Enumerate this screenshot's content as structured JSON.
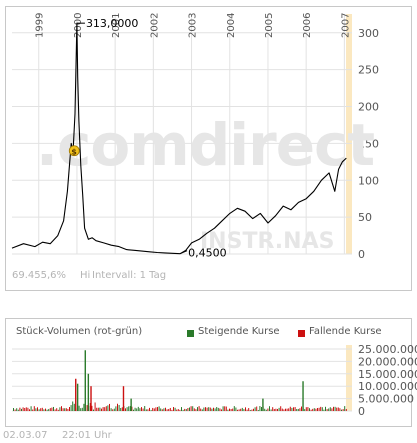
{
  "chart_data": [
    {
      "type": "line",
      "x_tick_labels": [
        "1999",
        "2000",
        "2001",
        "2002",
        "2003",
        "2004",
        "2005",
        "2006",
        "2007"
      ],
      "y_ticks": [
        0,
        50,
        100,
        150,
        200,
        250,
        300
      ],
      "ylim": [
        0,
        320
      ],
      "xlim": [
        1998.3,
        2007.2
      ],
      "grid": true,
      "series": [
        {
          "color": "#000000",
          "x": [
            1998.3,
            1998.6,
            1998.9,
            1999.1,
            1999.3,
            1999.5,
            1999.65,
            1999.75,
            1999.85,
            1999.9,
            1999.95,
            2000.0,
            2000.02,
            2000.05,
            2000.1,
            2000.15,
            2000.2,
            2000.3,
            2000.4,
            2000.5,
            2000.7,
            2000.9,
            2001.1,
            2001.3,
            2001.5,
            2001.7,
            2001.9,
            2002.1,
            2002.3,
            2002.5,
            2002.7,
            2002.85,
            2003.0,
            2003.2,
            2003.4,
            2003.6,
            2003.8,
            2004.0,
            2004.2,
            2004.4,
            2004.6,
            2004.8,
            2005.0,
            2005.2,
            2005.4,
            2005.6,
            2005.8,
            2006.0,
            2006.2,
            2006.4,
            2006.6,
            2006.75,
            2006.85,
            2006.95,
            2007.05
          ],
          "y": [
            8,
            14,
            10,
            16,
            14,
            25,
            45,
            85,
            150,
            140,
            190,
            313,
            240,
            180,
            120,
            80,
            35,
            20,
            22,
            18,
            15,
            12,
            10,
            6,
            5,
            4,
            3,
            2,
            1.5,
            1,
            0.45,
            5,
            15,
            20,
            28,
            35,
            45,
            55,
            62,
            58,
            48,
            55,
            42,
            52,
            65,
            60,
            70,
            75,
            85,
            100,
            110,
            85,
            115,
            125,
            130
          ]
        }
      ],
      "annotations": [
        {
          "text": "313,0000",
          "x": 2000.0,
          "y": 313
        },
        {
          "text": "0,4500",
          "x": 2002.7,
          "y": 0.45
        }
      ],
      "watermark": [
        ".comdirect",
        "INSTR.NAS"
      ]
    },
    {
      "type": "bar",
      "title": "Stück-Volumen (rot-grün)",
      "legend": [
        {
          "name": "Steigende Kurse",
          "color": "#2a7a2a"
        },
        {
          "name": "Fallende Kurse",
          "color": "#cc1010"
        }
      ],
      "y_ticks": [
        0,
        5000000,
        10000000,
        15000000,
        20000000,
        25000000
      ],
      "y_tick_labels": [
        "0",
        "5.000.000",
        "10.000.000",
        "15.000.000",
        "20.000.000",
        "25.000.000"
      ],
      "ylim": [
        0,
        25000000
      ],
      "xlim": [
        1998.3,
        2007.2
      ],
      "grid": true,
      "spikes": [
        {
          "x": 1999.95,
          "value": 13000000,
          "trend": "down"
        },
        {
          "x": 2000.0,
          "value": 11000000,
          "trend": "up"
        },
        {
          "x": 2000.2,
          "value": 24500000,
          "trend": "up"
        },
        {
          "x": 2000.28,
          "value": 15000000,
          "trend": "up"
        },
        {
          "x": 2000.35,
          "value": 10000000,
          "trend": "down"
        },
        {
          "x": 2001.2,
          "value": 10000000,
          "trend": "down"
        },
        {
          "x": 2001.4,
          "value": 5000000,
          "trend": "up"
        },
        {
          "x": 2004.85,
          "value": 5000000,
          "trend": "up"
        },
        {
          "x": 2005.9,
          "value": 12000000,
          "trend": "up"
        }
      ]
    }
  ],
  "footer": {
    "info_value": "69.455,6%",
    "hi_label": "Hi",
    "interval_label": "Intervall: 1 Tag",
    "date": "02.03.07",
    "time": "22:01 Uhr"
  },
  "colors": {
    "line": "#000000",
    "rising": "#2a7a2a",
    "falling": "#cc1010",
    "watermark": "#e6e6e6",
    "highlight_band": "#fbe8c0",
    "grid": "#e2e2e2",
    "marker": "#f2c21b"
  }
}
